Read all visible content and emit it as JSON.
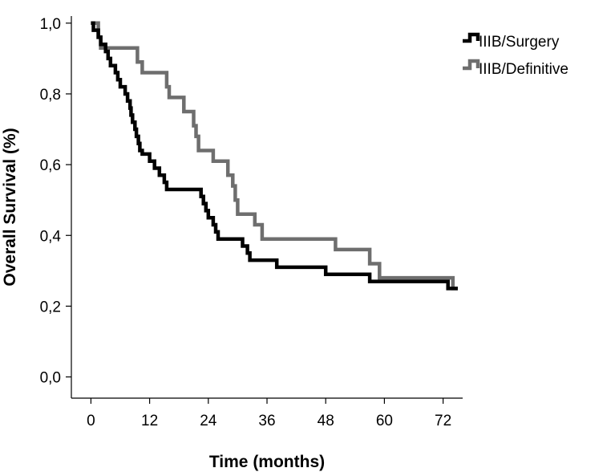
{
  "chart_data": {
    "type": "line",
    "subtype": "kaplan-meier-step",
    "title": "",
    "xlabel": "Time (months)",
    "ylabel": "Overall Survival (%)",
    "xlim": [
      -4,
      76
    ],
    "ylim": [
      -0.06,
      1.02
    ],
    "x_ticks": [
      0,
      12,
      24,
      36,
      48,
      60,
      72
    ],
    "x_tick_labels": [
      "0",
      "12",
      "24",
      "36",
      "48",
      "60",
      "72"
    ],
    "y_ticks": [
      0.0,
      0.2,
      0.4,
      0.6,
      0.8,
      1.0
    ],
    "y_tick_labels": [
      "0,0",
      "0,2",
      "0,4",
      "0,6",
      "0,8",
      "1,0"
    ],
    "grid": false,
    "legend_position": "top-right",
    "series": [
      {
        "name": "IIIB/Surgery",
        "color": "#000000",
        "steps": [
          [
            0,
            1.0
          ],
          [
            0.5,
            0.98
          ],
          [
            1.5,
            0.96
          ],
          [
            2,
            0.94
          ],
          [
            3,
            0.92
          ],
          [
            3.5,
            0.9
          ],
          [
            4,
            0.88
          ],
          [
            5,
            0.86
          ],
          [
            5.5,
            0.84
          ],
          [
            6,
            0.82
          ],
          [
            7,
            0.8
          ],
          [
            7.5,
            0.78
          ],
          [
            8,
            0.76
          ],
          [
            8.2,
            0.74
          ],
          [
            8.5,
            0.72
          ],
          [
            9,
            0.7
          ],
          [
            9.3,
            0.68
          ],
          [
            9.7,
            0.66
          ],
          [
            10,
            0.64
          ],
          [
            10.5,
            0.63
          ],
          [
            12,
            0.61
          ],
          [
            13,
            0.59
          ],
          [
            14,
            0.57
          ],
          [
            15,
            0.55
          ],
          [
            15.5,
            0.53
          ],
          [
            22.5,
            0.51
          ],
          [
            23,
            0.49
          ],
          [
            23.5,
            0.47
          ],
          [
            24,
            0.45
          ],
          [
            25,
            0.43
          ],
          [
            25.5,
            0.41
          ],
          [
            26,
            0.39
          ],
          [
            31,
            0.37
          ],
          [
            32,
            0.35
          ],
          [
            32.5,
            0.33
          ],
          [
            38,
            0.31
          ],
          [
            48,
            0.29
          ],
          [
            57,
            0.27
          ],
          [
            73,
            0.25
          ],
          [
            75,
            0.25
          ]
        ]
      },
      {
        "name": "IIIB/Definitive",
        "color": "#6e6e6e",
        "steps": [
          [
            0,
            1.0
          ],
          [
            1.5,
            0.96
          ],
          [
            2,
            0.93
          ],
          [
            9.5,
            0.89
          ],
          [
            10.5,
            0.86
          ],
          [
            15.5,
            0.82
          ],
          [
            16,
            0.79
          ],
          [
            19,
            0.75
          ],
          [
            21,
            0.71
          ],
          [
            21.5,
            0.68
          ],
          [
            22,
            0.64
          ],
          [
            25,
            0.61
          ],
          [
            28,
            0.57
          ],
          [
            29,
            0.54
          ],
          [
            29.5,
            0.5
          ],
          [
            30,
            0.46
          ],
          [
            33.5,
            0.43
          ],
          [
            35,
            0.39
          ],
          [
            50,
            0.36
          ],
          [
            57,
            0.32
          ],
          [
            59,
            0.28
          ],
          [
            74,
            0.25
          ],
          [
            75,
            0.25
          ]
        ]
      }
    ]
  }
}
